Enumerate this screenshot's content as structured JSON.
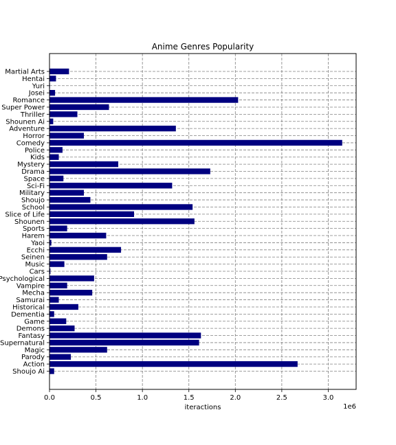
{
  "chart_data": {
    "type": "bar",
    "orientation": "horizontal",
    "title": "Anime Genres Popularity",
    "xlabel": "iteractions",
    "ylabel": "",
    "x_scale_label": "1e6",
    "xlim": [
      0,
      3.3
    ],
    "x_ticks": [
      "0.0",
      "0.5",
      "1.0",
      "1.5",
      "2.0",
      "2.5",
      "3.0"
    ],
    "grid": true,
    "bar_color": "#000080",
    "categories": [
      "Shoujo Ai",
      "Action",
      "Parody",
      "Magic",
      "Supernatural",
      "Fantasy",
      "Demons",
      "Game",
      "Dementia",
      "Historical",
      "Samurai",
      "Mecha",
      "Vampire",
      "Psychological",
      "Cars",
      "Music",
      "Seinen",
      "Ecchi",
      "Yaoi",
      "Harem",
      "Sports",
      "Shounen",
      "Slice of Life",
      "School",
      "Shoujo",
      "Military",
      "Sci-Fi",
      "Space",
      "Drama",
      "Mystery",
      "Kids",
      "Police",
      "Comedy",
      "Horror",
      "Adventure",
      "Shounen Ai",
      "Thriller",
      "Super Power",
      "Romance",
      "Josei",
      "Yuri",
      "Hentai",
      "Martial Arts"
    ],
    "values": [
      0.05,
      2.67,
      0.23,
      0.62,
      1.61,
      1.63,
      0.27,
      0.18,
      0.05,
      0.31,
      0.1,
      0.46,
      0.19,
      0.48,
      0.01,
      0.16,
      0.62,
      0.77,
      0.02,
      0.61,
      0.19,
      1.56,
      0.91,
      1.54,
      0.44,
      0.37,
      1.32,
      0.15,
      1.73,
      0.74,
      0.1,
      0.14,
      3.15,
      0.37,
      1.36,
      0.04,
      0.3,
      0.64,
      2.03,
      0.06,
      0.005,
      0.07,
      0.21
    ]
  }
}
